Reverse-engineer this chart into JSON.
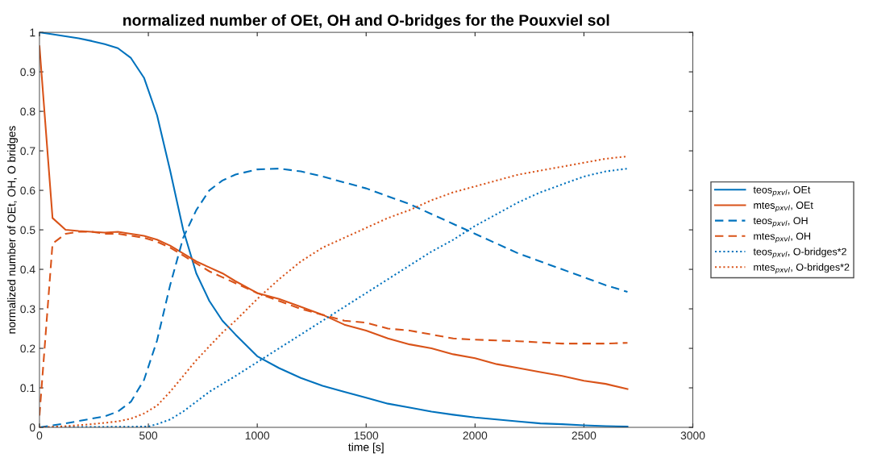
{
  "chart_data": {
    "type": "line",
    "title": "normalized number of OEt, OH and O-bridges for the Pouxviel sol",
    "xlabel": "time [s]",
    "ylabel": "normalized number of OEt, OH, O bridges",
    "xlim": [
      0,
      3000
    ],
    "xticks": [
      0,
      500,
      1000,
      1500,
      2000,
      2500,
      3000
    ],
    "ylim": [
      0,
      1
    ],
    "yticks": [
      0,
      0.1,
      0.2,
      0.3,
      0.4,
      0.5,
      0.6,
      0.7,
      0.8,
      0.9,
      1
    ],
    "grid": false,
    "legend": "right",
    "marker": "none",
    "series": [
      {
        "name": "teos$_{pxvl}$, OEt",
        "color": "#0072bd",
        "line_style": "solid",
        "x": [
          0,
          60,
          120,
          180,
          240,
          300,
          360,
          420,
          480,
          540,
          600,
          660,
          720,
          780,
          840,
          900,
          1000,
          1100,
          1200,
          1300,
          1400,
          1500,
          1600,
          1700,
          1800,
          1900,
          2000,
          2100,
          2200,
          2300,
          2400,
          2500,
          2600,
          2700
        ],
        "values": [
          1,
          0.995,
          0.99,
          0.985,
          0.978,
          0.97,
          0.96,
          0.935,
          0.885,
          0.79,
          0.65,
          0.5,
          0.39,
          0.32,
          0.27,
          0.235,
          0.18,
          0.15,
          0.125,
          0.105,
          0.09,
          0.075,
          0.06,
          0.05,
          0.04,
          0.032,
          0.025,
          0.02,
          0.015,
          0.01,
          0.008,
          0.005,
          0.003,
          0.002
        ]
      },
      {
        "name": "mtes$_{pxvl}$, OEt",
        "color": "#d95319",
        "line_style": "solid",
        "x": [
          0,
          60,
          120,
          180,
          240,
          300,
          360,
          420,
          480,
          540,
          600,
          660,
          720,
          780,
          840,
          900,
          1000,
          1100,
          1200,
          1300,
          1400,
          1500,
          1600,
          1700,
          1800,
          1900,
          2000,
          2100,
          2200,
          2300,
          2400,
          2500,
          2600,
          2700
        ],
        "values": [
          0.965,
          0.53,
          0.5,
          0.497,
          0.495,
          0.493,
          0.495,
          0.49,
          0.485,
          0.475,
          0.46,
          0.44,
          0.42,
          0.405,
          0.39,
          0.37,
          0.34,
          0.325,
          0.305,
          0.285,
          0.26,
          0.245,
          0.225,
          0.21,
          0.2,
          0.185,
          0.175,
          0.16,
          0.15,
          0.14,
          0.13,
          0.118,
          0.11,
          0.097
        ]
      },
      {
        "name": "teos$_{pxvl}$, OH",
        "color": "#0072bd",
        "line_style": "dashed",
        "x": [
          0,
          60,
          120,
          180,
          240,
          300,
          360,
          420,
          480,
          540,
          600,
          660,
          720,
          780,
          840,
          900,
          1000,
          1100,
          1200,
          1300,
          1400,
          1500,
          1600,
          1700,
          1800,
          1900,
          2000,
          2100,
          2200,
          2300,
          2400,
          2500,
          2600,
          2700
        ],
        "values": [
          0,
          0.005,
          0.01,
          0.016,
          0.022,
          0.028,
          0.04,
          0.065,
          0.12,
          0.22,
          0.36,
          0.48,
          0.55,
          0.6,
          0.625,
          0.64,
          0.653,
          0.655,
          0.648,
          0.635,
          0.62,
          0.605,
          0.585,
          0.565,
          0.54,
          0.515,
          0.49,
          0.465,
          0.44,
          0.42,
          0.4,
          0.38,
          0.36,
          0.343
        ]
      },
      {
        "name": "mtes$_{pxvl}$, OH",
        "color": "#d95319",
        "line_style": "dashed",
        "x": [
          0,
          60,
          120,
          180,
          240,
          300,
          360,
          420,
          480,
          540,
          600,
          660,
          720,
          780,
          840,
          900,
          1000,
          1100,
          1200,
          1300,
          1400,
          1500,
          1600,
          1700,
          1800,
          1900,
          2000,
          2100,
          2200,
          2300,
          2400,
          2500,
          2600,
          2700
        ],
        "values": [
          0.03,
          0.465,
          0.49,
          0.495,
          0.495,
          0.49,
          0.49,
          0.485,
          0.48,
          0.47,
          0.455,
          0.435,
          0.415,
          0.395,
          0.38,
          0.365,
          0.34,
          0.32,
          0.3,
          0.285,
          0.27,
          0.265,
          0.25,
          0.245,
          0.235,
          0.225,
          0.222,
          0.22,
          0.218,
          0.215,
          0.212,
          0.212,
          0.212,
          0.214
        ]
      },
      {
        "name": "teos$_{pxvl}$, O-bridges*2",
        "color": "#0072bd",
        "line_style": "dotted",
        "x": [
          0,
          500,
          540,
          600,
          660,
          720,
          780,
          840,
          900,
          1000,
          1100,
          1200,
          1300,
          1400,
          1500,
          1600,
          1700,
          1800,
          1900,
          2000,
          2100,
          2200,
          2300,
          2400,
          2500,
          2600,
          2700
        ],
        "values": [
          0,
          0.002,
          0.008,
          0.02,
          0.04,
          0.065,
          0.09,
          0.11,
          0.13,
          0.165,
          0.2,
          0.235,
          0.27,
          0.305,
          0.34,
          0.375,
          0.41,
          0.445,
          0.475,
          0.51,
          0.54,
          0.57,
          0.595,
          0.615,
          0.635,
          0.648,
          0.655
        ]
      },
      {
        "name": "mtes$_{pxvl}$, O-bridges*2",
        "color": "#d95319",
        "line_style": "dotted",
        "x": [
          0,
          120,
          240,
          360,
          420,
          480,
          540,
          600,
          660,
          720,
          780,
          840,
          900,
          1000,
          1100,
          1200,
          1300,
          1400,
          1500,
          1600,
          1700,
          1800,
          1900,
          2000,
          2100,
          2200,
          2300,
          2400,
          2500,
          2600,
          2700
        ],
        "values": [
          0,
          0.003,
          0.008,
          0.015,
          0.022,
          0.035,
          0.055,
          0.09,
          0.13,
          0.17,
          0.205,
          0.24,
          0.27,
          0.325,
          0.375,
          0.42,
          0.455,
          0.48,
          0.505,
          0.53,
          0.55,
          0.575,
          0.595,
          0.61,
          0.625,
          0.64,
          0.65,
          0.66,
          0.67,
          0.68,
          0.686
        ]
      }
    ]
  }
}
